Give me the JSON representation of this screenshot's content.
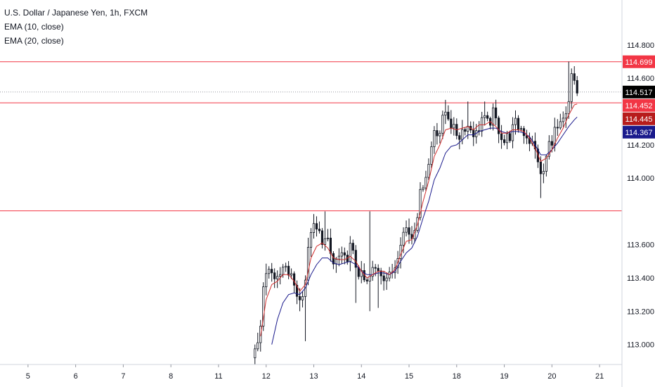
{
  "chart_data": {
    "type": "candlestick",
    "legend": [
      {
        "label": "U.S. Dollar / Japanese Yen, 1h, FXCM"
      },
      {
        "label": "EMA (10, close)"
      },
      {
        "label": "EMA (20, close)"
      }
    ],
    "y_axis": {
      "range": [
        112.88,
        115.07
      ],
      "ticks": [
        "114.800",
        "114.600",
        "114.200",
        "114.000",
        "113.600",
        "113.400",
        "113.200",
        "113.000"
      ],
      "tick_values": [
        114.8,
        114.6,
        114.2,
        114.0,
        113.6,
        113.4,
        113.2,
        113.0
      ]
    },
    "x_axis": {
      "ticks": [
        "5",
        "6",
        "7",
        "8",
        "11",
        "12",
        "13",
        "14",
        "15",
        "18",
        "19",
        "20",
        "21"
      ],
      "tick_index": [
        3,
        20,
        37,
        54,
        71,
        88,
        105,
        122,
        139,
        156,
        173,
        190,
        207
      ],
      "index_range": [
        -7,
        215
      ]
    },
    "horizontal_lines": [
      {
        "value": 114.699,
        "label": "114.699",
        "color": "#f23645"
      },
      {
        "value": 114.452,
        "label": "114.452",
        "color": "#f23645"
      },
      {
        "value": 113.803,
        "label": "113.803",
        "color": "#f23645"
      }
    ],
    "price_tags": [
      {
        "value": 114.699,
        "label": "114.699",
        "color": "#f23645"
      },
      {
        "value": 114.517,
        "label": "114.517",
        "color": "#000000"
      },
      {
        "value": 114.452,
        "label": "114.452",
        "color": "#f23645"
      },
      {
        "value": 114.445,
        "label": "114.445",
        "color": "#b71c1c"
      },
      {
        "value": 114.367,
        "label": "114.367",
        "color": "#1a1a8c"
      }
    ],
    "last_price": 114.517,
    "anchors": [
      [
        84,
        112.95
      ],
      [
        85,
        113.0
      ],
      [
        86,
        113.1
      ],
      [
        87,
        113.38
      ],
      [
        88,
        113.43
      ],
      [
        90,
        113.46
      ],
      [
        92,
        113.37
      ],
      [
        94,
        113.45
      ],
      [
        96,
        113.43
      ],
      [
        98,
        113.36
      ],
      [
        100,
        113.26
      ],
      [
        102,
        113.4
      ],
      [
        104,
        113.7
      ],
      [
        106,
        113.68
      ],
      [
        108,
        113.64
      ],
      [
        110,
        113.6
      ],
      [
        112,
        113.48
      ],
      [
        114,
        113.52
      ],
      [
        116,
        113.5
      ],
      [
        118,
        113.58
      ],
      [
        120,
        113.48
      ],
      [
        122,
        113.4
      ],
      [
        124,
        113.36
      ],
      [
        126,
        113.44
      ],
      [
        128,
        113.46
      ],
      [
        130,
        113.42
      ],
      [
        132,
        113.4
      ],
      [
        134,
        113.48
      ],
      [
        136,
        113.64
      ],
      [
        138,
        113.7
      ],
      [
        140,
        113.65
      ],
      [
        142,
        113.8
      ],
      [
        144,
        113.98
      ],
      [
        146,
        114.08
      ],
      [
        148,
        114.3
      ],
      [
        150,
        114.28
      ],
      [
        152,
        114.4
      ],
      [
        153,
        114.38
      ],
      [
        155,
        114.28
      ],
      [
        157,
        114.26
      ],
      [
        159,
        114.32
      ],
      [
        161,
        114.3
      ],
      [
        163,
        114.26
      ],
      [
        165,
        114.36
      ],
      [
        167,
        114.32
      ],
      [
        169,
        114.38
      ],
      [
        171,
        114.3
      ],
      [
        173,
        114.22
      ],
      [
        175,
        114.26
      ],
      [
        177,
        114.32
      ],
      [
        179,
        114.3
      ],
      [
        181,
        114.26
      ],
      [
        183,
        114.2
      ],
      [
        185,
        114.12
      ],
      [
        186,
        114.0
      ],
      [
        187,
        114.04
      ],
      [
        189,
        114.2
      ],
      [
        191,
        114.28
      ],
      [
        193,
        114.3
      ],
      [
        195,
        114.36
      ],
      [
        196,
        114.44
      ],
      [
        197,
        114.6
      ],
      [
        198,
        114.58
      ],
      [
        199,
        114.52
      ]
    ],
    "ema10": [
      [
        86,
        113.05
      ],
      [
        88,
        113.27
      ],
      [
        90,
        113.36
      ],
      [
        92,
        113.38
      ],
      [
        94,
        113.42
      ],
      [
        96,
        113.42
      ],
      [
        98,
        113.38
      ],
      [
        100,
        113.32
      ],
      [
        102,
        113.36
      ],
      [
        104,
        113.52
      ],
      [
        106,
        113.59
      ],
      [
        108,
        113.61
      ],
      [
        110,
        113.58
      ],
      [
        112,
        113.52
      ],
      [
        114,
        113.51
      ],
      [
        116,
        113.51
      ],
      [
        118,
        113.53
      ],
      [
        120,
        113.5
      ],
      [
        122,
        113.44
      ],
      [
        124,
        113.4
      ],
      [
        126,
        113.42
      ],
      [
        128,
        113.44
      ],
      [
        130,
        113.44
      ],
      [
        132,
        113.42
      ],
      [
        134,
        113.45
      ],
      [
        136,
        113.54
      ],
      [
        138,
        113.62
      ],
      [
        140,
        113.63
      ],
      [
        142,
        113.72
      ],
      [
        144,
        113.86
      ],
      [
        146,
        113.98
      ],
      [
        148,
        114.13
      ],
      [
        150,
        114.2
      ],
      [
        152,
        114.29
      ],
      [
        154,
        114.3
      ],
      [
        156,
        114.29
      ],
      [
        158,
        114.3
      ],
      [
        160,
        114.31
      ],
      [
        162,
        114.29
      ],
      [
        164,
        114.32
      ],
      [
        166,
        114.32
      ],
      [
        168,
        114.34
      ],
      [
        170,
        114.31
      ],
      [
        172,
        114.27
      ],
      [
        174,
        114.27
      ],
      [
        176,
        114.29
      ],
      [
        178,
        114.29
      ],
      [
        180,
        114.28
      ],
      [
        182,
        114.24
      ],
      [
        184,
        114.18
      ],
      [
        186,
        114.1
      ],
      [
        188,
        114.12
      ],
      [
        190,
        114.17
      ],
      [
        192,
        114.24
      ],
      [
        194,
        114.3
      ],
      [
        196,
        114.38
      ],
      [
        198,
        114.44
      ],
      [
        199,
        114.445
      ]
    ],
    "ema20": [
      [
        90,
        113.0
      ],
      [
        92,
        113.15
      ],
      [
        94,
        113.25
      ],
      [
        96,
        113.3
      ],
      [
        98,
        113.31
      ],
      [
        100,
        113.3
      ],
      [
        102,
        113.34
      ],
      [
        104,
        113.42
      ],
      [
        106,
        113.48
      ],
      [
        108,
        113.52
      ],
      [
        110,
        113.52
      ],
      [
        112,
        113.49
      ],
      [
        114,
        113.48
      ],
      [
        116,
        113.49
      ],
      [
        118,
        113.5
      ],
      [
        120,
        113.48
      ],
      [
        122,
        113.44
      ],
      [
        124,
        113.42
      ],
      [
        126,
        113.42
      ],
      [
        128,
        113.43
      ],
      [
        130,
        113.43
      ],
      [
        132,
        113.42
      ],
      [
        134,
        113.44
      ],
      [
        136,
        113.5
      ],
      [
        138,
        113.55
      ],
      [
        140,
        113.58
      ],
      [
        142,
        113.65
      ],
      [
        144,
        113.76
      ],
      [
        146,
        113.86
      ],
      [
        148,
        113.99
      ],
      [
        150,
        114.06
      ],
      [
        152,
        114.15
      ],
      [
        154,
        114.19
      ],
      [
        156,
        114.2
      ],
      [
        158,
        114.23
      ],
      [
        160,
        114.26
      ],
      [
        162,
        114.26
      ],
      [
        164,
        114.28
      ],
      [
        166,
        114.29
      ],
      [
        168,
        114.3
      ],
      [
        170,
        114.3
      ],
      [
        172,
        114.28
      ],
      [
        174,
        114.27
      ],
      [
        176,
        114.28
      ],
      [
        178,
        114.28
      ],
      [
        180,
        114.27
      ],
      [
        182,
        114.25
      ],
      [
        184,
        114.2
      ],
      [
        186,
        114.14
      ],
      [
        188,
        114.14
      ],
      [
        190,
        114.17
      ],
      [
        192,
        114.21
      ],
      [
        194,
        114.26
      ],
      [
        196,
        114.31
      ],
      [
        198,
        114.35
      ],
      [
        199,
        114.367
      ]
    ],
    "spikes": [
      [
        196,
        114.7
      ],
      [
        186,
        113.88
      ],
      [
        160,
        114.46
      ],
      [
        166,
        114.46
      ],
      [
        152,
        114.47
      ],
      [
        109,
        113.8
      ],
      [
        125,
        113.8
      ],
      [
        125,
        113.2
      ],
      [
        102,
        113.02
      ],
      [
        100,
        113.2
      ],
      [
        120,
        113.25
      ],
      [
        128,
        113.22
      ]
    ],
    "candle_color": "#131722",
    "ema10_color": "#d32f2f",
    "ema20_color": "#1a1a8c"
  }
}
